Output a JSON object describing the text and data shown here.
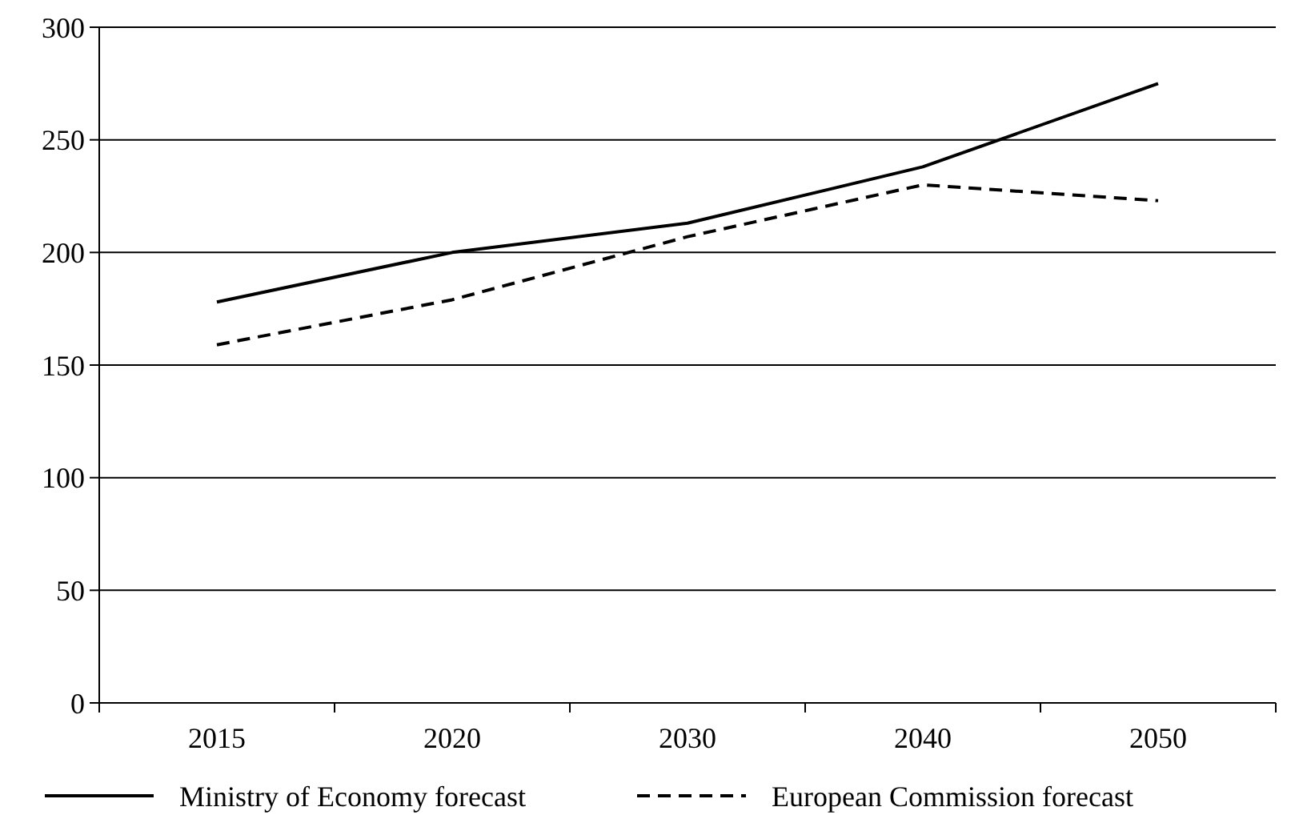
{
  "chart_data": {
    "type": "line",
    "categories": [
      "2015",
      "2020",
      "2030",
      "2040",
      "2050"
    ],
    "series": [
      {
        "name": "Ministry of Economy forecast",
        "color": "#000000",
        "values": [
          178,
          200,
          213,
          238,
          275
        ],
        "line_style": "solid"
      },
      {
        "name": "European Commission forecast",
        "color": "#000000",
        "values": [
          159,
          179,
          207,
          230,
          223
        ],
        "line_style": "dashed"
      }
    ],
    "ylim": [
      0,
      300
    ],
    "yticks": [
      0,
      50,
      100,
      150,
      200,
      250,
      300
    ],
    "grid": "y",
    "legend": "bottom",
    "marker": "none"
  }
}
